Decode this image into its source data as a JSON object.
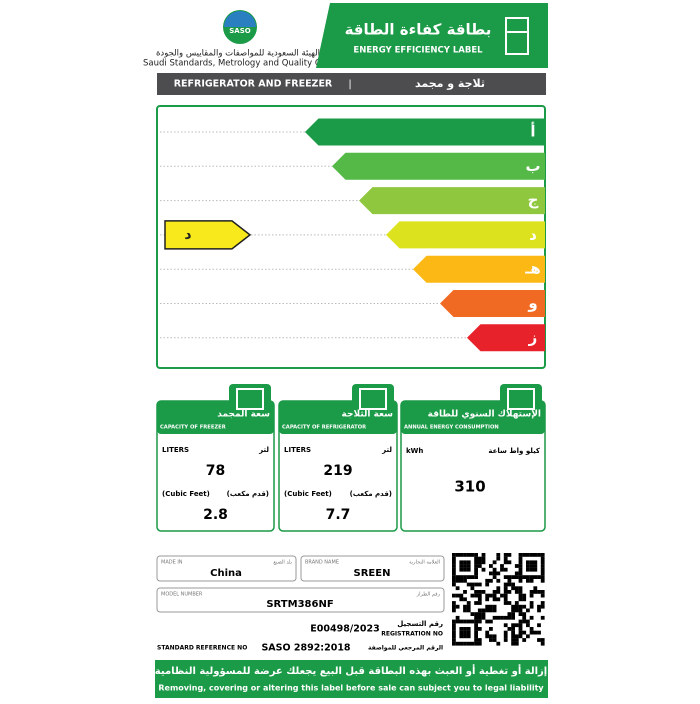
{
  "header": {
    "logo": "SASO",
    "org_ar": "الهيئة السعودية للمواصفات والمقاييس والجودة",
    "org_en": "Saudi Standards, Metrology and Quality Org.",
    "title_ar": "بطاقة كفاءة الطاقة",
    "title_en": "ENERGY EFFICIENCY LABEL"
  },
  "product": {
    "en": "REFRIGERATOR AND FREEZER",
    "separator": "|",
    "ar": "ثلاجة و مجمد"
  },
  "scale": {
    "classes": [
      {
        "label": "أ",
        "color": "#1b9a47"
      },
      {
        "label": "ب",
        "color": "#55b947"
      },
      {
        "label": "ج",
        "color": "#8fc73e"
      },
      {
        "label": "د",
        "color": "#dde21f"
      },
      {
        "label": "هـ",
        "color": "#fcb814"
      },
      {
        "label": "و",
        "color": "#f06a23"
      },
      {
        "label": "ز",
        "color": "#e8222a"
      }
    ],
    "rating": "د",
    "rating_color": "#f7e91b"
  },
  "freezer": {
    "title_ar": "سعة المجمد",
    "title_en": "CAPACITY OF FREEZER",
    "unit1_en": "LITERS",
    "unit1_ar": "لتر",
    "value1": 78,
    "unit2_en": "(Cubic Feet)",
    "unit2_ar": "(قدم مكعب)",
    "value2": 2.8
  },
  "refrigerator": {
    "title_ar": "سعة الثلاجة",
    "title_en": "CAPACITY OF REFRIGERATOR",
    "unit1_en": "LITERS",
    "unit1_ar": "لتر",
    "value1": 219,
    "unit2_en": "(Cubic Feet)",
    "unit2_ar": "(قدم مكعب)",
    "value2": 7.7
  },
  "energy": {
    "title_ar": "الإستهلاك السنوي للطاقة",
    "title_en": "ANNUAL ENERGY CONSUMPTION",
    "unit_en": "kWh",
    "unit_ar": "كيلو واط ساعة",
    "value": 310
  },
  "info": {
    "made_in_en": "MADE IN",
    "made_in_ar": "بلد الصنع",
    "made_in": "China",
    "brand_en": "BRAND NAME",
    "brand_ar": "العلامة التجارية",
    "brand": "SREEN",
    "model_en": "MODEL NUMBER",
    "model_ar": "رقم الطراز",
    "model": "SRTM386NF",
    "registration": "E00498/2023",
    "registration_ar": "رقم التسجيل",
    "registration_en": "REGISTRATION NO",
    "standard_en": "STANDARD REFERENCE NO",
    "standard": "SASO 2892:2018",
    "standard_ar": "الرقم المرجعي للمواصفة"
  },
  "footer": {
    "ar": "إزالة أو تغطية أو العبث بهذه البطاقة قبل البيع يجعلك عرضة للمسؤولية النظامية",
    "en": "Removing, covering or altering this label before sale can subject you to legal liability"
  }
}
